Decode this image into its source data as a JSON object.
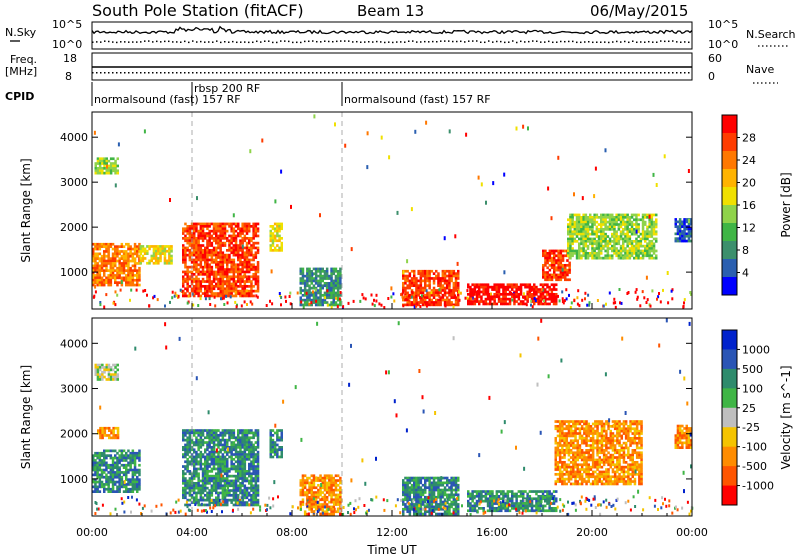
{
  "header": {
    "station": "South Pole Station (fitACF)",
    "beam": "Beam 13",
    "date": "06/May/2015"
  },
  "status_panels": {
    "nsky_label": "N.Sky",
    "nsky_ticks": [
      "10^5",
      "10^0"
    ],
    "nsearch_label": "N.Search",
    "nsearch_ticks": [
      "10^5",
      "10^0"
    ],
    "freq_label": "Freq.",
    "freq_unit": "[MHz]",
    "freq_ticks": [
      "18",
      "8"
    ],
    "nave_label": "Nave",
    "nave_ticks": [
      "60",
      "0"
    ],
    "cpid_label": "CPID",
    "cpid_segments": [
      {
        "label": "normalsound (fast) 157 RF",
        "start_h": 0.0,
        "end_h": 4.0
      },
      {
        "label": "rbsp 200 RF",
        "start_h": 4.0,
        "end_h": 10.0
      },
      {
        "label": "normalsound (fast) 157 RF",
        "start_h": 10.0,
        "end_h": 24.0
      }
    ]
  },
  "x_axis": {
    "label": "Time UT",
    "ticks": [
      "00:00",
      "04:00",
      "08:00",
      "12:00",
      "16:00",
      "20:00",
      "00:00"
    ]
  },
  "chart_data": [
    {
      "type": "heatmap",
      "title": "",
      "xlabel": "Time UT",
      "ylabel": "Slant Range [km]",
      "xlim_hours": [
        0,
        24
      ],
      "ylim": [
        180,
        4560
      ],
      "yticks": [
        "1000",
        "2000",
        "3000",
        "4000"
      ],
      "colorbar": {
        "label": "Power [dB]",
        "ticks": [
          "28",
          "24",
          "20",
          "16",
          "12",
          "8",
          "4"
        ],
        "colors": [
          "#ff0000",
          "#ff3c00",
          "#ff7800",
          "#ffb300",
          "#f0e000",
          "#8fd34a",
          "#3fb545",
          "#3c8f6c",
          "#2a5fb0",
          "#0000ff"
        ]
      },
      "regions": [
        {
          "t0": 0.1,
          "t1": 1.0,
          "r0": 3200,
          "r1": 3550,
          "level": 5
        },
        {
          "t0": 0.0,
          "t1": 1.9,
          "r0": 700,
          "r1": 1650,
          "level": 2
        },
        {
          "t0": 1.9,
          "t1": 3.2,
          "r0": 1200,
          "r1": 1600,
          "level": 4
        },
        {
          "t0": 3.6,
          "t1": 6.6,
          "r0": 450,
          "r1": 2100,
          "level": 1
        },
        {
          "t0": 7.1,
          "t1": 7.6,
          "r0": 1500,
          "r1": 2100,
          "level": 4
        },
        {
          "t0": 8.3,
          "t1": 9.9,
          "r0": 250,
          "r1": 1100,
          "level": 7
        },
        {
          "t0": 12.4,
          "t1": 14.6,
          "r0": 250,
          "r1": 1050,
          "level": 1
        },
        {
          "t0": 15.0,
          "t1": 18.6,
          "r0": 300,
          "r1": 750,
          "level": 0
        },
        {
          "t0": 18.0,
          "t1": 19.1,
          "r0": 850,
          "r1": 1500,
          "level": 1
        },
        {
          "t0": 19.0,
          "t1": 22.6,
          "r0": 1300,
          "r1": 2300,
          "level": 5
        },
        {
          "t0": 23.3,
          "t1": 24.0,
          "r0": 1700,
          "r1": 2200,
          "level": 8
        }
      ]
    },
    {
      "type": "heatmap",
      "title": "",
      "xlabel": "Time UT",
      "ylabel": "Slant Range [km]",
      "xlim_hours": [
        0,
        24
      ],
      "ylim": [
        180,
        4560
      ],
      "yticks": [
        "1000",
        "2000",
        "3000",
        "4000"
      ],
      "colorbar": {
        "label": "Velocity [m s^-1]",
        "ticks": [
          "1000",
          "500",
          "100",
          "25",
          "-25",
          "-100",
          "-500",
          "-1000"
        ],
        "colors": [
          "#0022cc",
          "#2a55b5",
          "#2e8b6c",
          "#3fb545",
          "#bfbfbf",
          "#f5c400",
          "#ff8c00",
          "#ff5500",
          "#ff0000"
        ]
      },
      "regions": [
        {
          "t0": 0.1,
          "t1": 1.0,
          "r0": 3200,
          "r1": 3550,
          "level": 4
        },
        {
          "t0": 0.0,
          "t1": 1.9,
          "r0": 700,
          "r1": 1650,
          "level": 2
        },
        {
          "t0": 0.2,
          "t1": 1.0,
          "r0": 1900,
          "r1": 2150,
          "level": 6
        },
        {
          "t0": 3.6,
          "t1": 6.6,
          "r0": 450,
          "r1": 2100,
          "level": 2
        },
        {
          "t0": 7.1,
          "t1": 7.6,
          "r0": 1500,
          "r1": 2100,
          "level": 2
        },
        {
          "t0": 8.3,
          "t1": 9.9,
          "r0": 250,
          "r1": 1100,
          "level": 6
        },
        {
          "t0": 12.4,
          "t1": 14.6,
          "r0": 250,
          "r1": 1050,
          "level": 2
        },
        {
          "t0": 15.0,
          "t1": 18.6,
          "r0": 300,
          "r1": 750,
          "level": 2
        },
        {
          "t0": 18.5,
          "t1": 22.0,
          "r0": 900,
          "r1": 2300,
          "level": 6
        },
        {
          "t0": 23.3,
          "t1": 24.0,
          "r0": 1700,
          "r1": 2200,
          "level": 6
        }
      ]
    }
  ]
}
